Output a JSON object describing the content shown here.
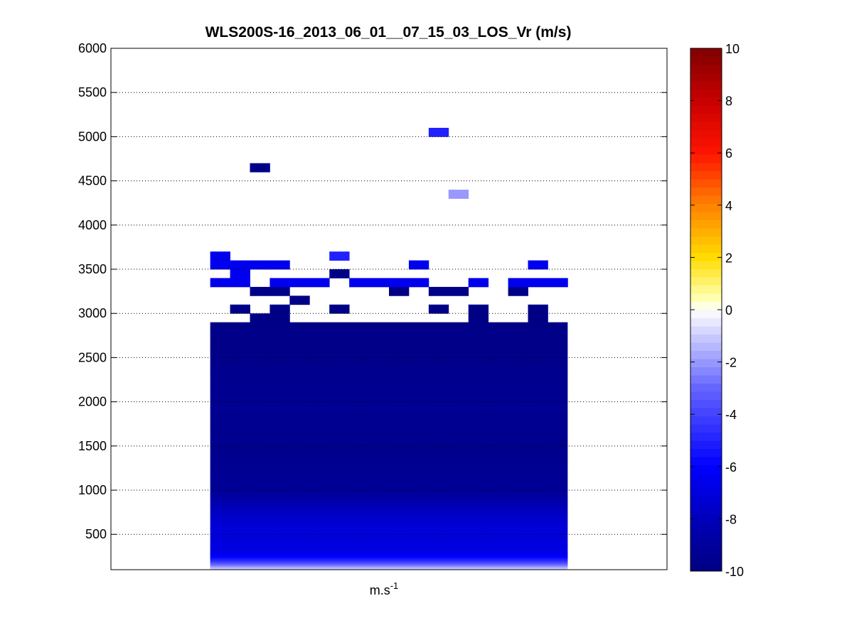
{
  "chart_data": {
    "type": "heatmap",
    "title": "WLS200S-16_2013_06_01__07_15_03_LOS_Vr (m/s)",
    "xlabel": "m.s",
    "xlabel_superscript": "-1",
    "ylabel": "",
    "ylim": [
      100,
      6000
    ],
    "yticks": [
      500,
      1000,
      1500,
      2000,
      2500,
      3000,
      3500,
      4000,
      4500,
      5000,
      5500,
      6000
    ],
    "grid": "y-dotted",
    "xlim": [
      0,
      28
    ],
    "colorbar": {
      "clim": [
        -10,
        10
      ],
      "ticks": [
        -10,
        -8,
        -6,
        -4,
        -2,
        0,
        2,
        4,
        6,
        8,
        10
      ],
      "colormap": "blue-white-red"
    },
    "columns": {
      "start": 5,
      "end": 23,
      "count": 18
    },
    "bulk_profile": [
      {
        "altitude": 100,
        "value": -0.5
      },
      {
        "altitude": 150,
        "value": -2.5
      },
      {
        "altitude": 200,
        "value": -4.5
      },
      {
        "altitude": 250,
        "value": -6.0
      },
      {
        "altitude": 300,
        "value": -6.8
      },
      {
        "altitude": 400,
        "value": -7.0
      },
      {
        "altitude": 600,
        "value": -7.2
      },
      {
        "altitude": 800,
        "value": -8.0
      },
      {
        "altitude": 1000,
        "value": -9.2
      },
      {
        "altitude": 1500,
        "value": -9.6
      },
      {
        "altitude": 2000,
        "value": -9.4
      },
      {
        "altitude": 2500,
        "value": -9.7
      },
      {
        "altitude": 2900,
        "value": -9.8
      }
    ],
    "cells": [
      {
        "col": 7,
        "alt_low": 2900,
        "alt_high": 3000,
        "value": -9.8
      },
      {
        "col": 8,
        "alt_low": 2900,
        "alt_high": 3100,
        "value": -9.8
      },
      {
        "col": 18,
        "alt_low": 2900,
        "alt_high": 3100,
        "value": -9.8
      },
      {
        "col": 21,
        "alt_low": 2900,
        "alt_high": 3100,
        "value": -9.8
      },
      {
        "col": 6,
        "alt_low": 3000,
        "alt_high": 3100,
        "value": -9.8
      },
      {
        "col": 11,
        "alt_low": 3000,
        "alt_high": 3100,
        "value": -9.8
      },
      {
        "col": 16,
        "alt_low": 3000,
        "alt_high": 3100,
        "value": -9.8
      },
      {
        "col": 9,
        "alt_low": 3100,
        "alt_high": 3200,
        "value": -9.8
      },
      {
        "col": 7,
        "alt_low": 3200,
        "alt_high": 3300,
        "value": -9.8
      },
      {
        "col": 8,
        "alt_low": 3200,
        "alt_high": 3300,
        "value": -9.8
      },
      {
        "col": 14,
        "alt_low": 3200,
        "alt_high": 3300,
        "value": -9.8
      },
      {
        "col": 16,
        "alt_low": 3200,
        "alt_high": 3300,
        "value": -9.8
      },
      {
        "col": 17,
        "alt_low": 3200,
        "alt_high": 3300,
        "value": -9.8
      },
      {
        "col": 20,
        "alt_low": 3200,
        "alt_high": 3300,
        "value": -9.8
      },
      {
        "col": 5,
        "alt_low": 3300,
        "alt_high": 3400,
        "value": -6.5
      },
      {
        "col": 6,
        "alt_low": 3300,
        "alt_high": 3400,
        "value": -6.5
      },
      {
        "col": 8,
        "alt_low": 3300,
        "alt_high": 3400,
        "value": -6.5
      },
      {
        "col": 9,
        "alt_low": 3300,
        "alt_high": 3400,
        "value": -6.5
      },
      {
        "col": 10,
        "alt_low": 3300,
        "alt_high": 3400,
        "value": -6.5
      },
      {
        "col": 12,
        "alt_low": 3300,
        "alt_high": 3400,
        "value": -6.5
      },
      {
        "col": 13,
        "alt_low": 3300,
        "alt_high": 3400,
        "value": -6.5
      },
      {
        "col": 14,
        "alt_low": 3300,
        "alt_high": 3400,
        "value": -6.5
      },
      {
        "col": 15,
        "alt_low": 3300,
        "alt_high": 3400,
        "value": -6.5
      },
      {
        "col": 18,
        "alt_low": 3300,
        "alt_high": 3400,
        "value": -6.5
      },
      {
        "col": 20,
        "alt_low": 3300,
        "alt_high": 3400,
        "value": -6.5
      },
      {
        "col": 21,
        "alt_low": 3300,
        "alt_high": 3400,
        "value": -6.5
      },
      {
        "col": 22,
        "alt_low": 3300,
        "alt_high": 3400,
        "value": -6.5
      },
      {
        "col": 6,
        "alt_low": 3400,
        "alt_high": 3500,
        "value": -6.5
      },
      {
        "col": 11,
        "alt_low": 3400,
        "alt_high": 3500,
        "value": -9.8
      },
      {
        "col": 5,
        "alt_low": 3500,
        "alt_high": 3600,
        "value": -6.5
      },
      {
        "col": 6,
        "alt_low": 3500,
        "alt_high": 3600,
        "value": -6.5
      },
      {
        "col": 7,
        "alt_low": 3500,
        "alt_high": 3600,
        "value": -6.5
      },
      {
        "col": 8,
        "alt_low": 3500,
        "alt_high": 3600,
        "value": -6.5
      },
      {
        "col": 15,
        "alt_low": 3500,
        "alt_high": 3600,
        "value": -6.5
      },
      {
        "col": 21,
        "alt_low": 3500,
        "alt_high": 3600,
        "value": -6.5
      },
      {
        "col": 5,
        "alt_low": 3600,
        "alt_high": 3700,
        "value": -6.5
      },
      {
        "col": 11,
        "alt_low": 3600,
        "alt_high": 3700,
        "value": -5.0
      },
      {
        "col": 17,
        "alt_low": 4300,
        "alt_high": 4400,
        "value": -2.0
      },
      {
        "col": 7,
        "alt_low": 4600,
        "alt_high": 4700,
        "value": -9.8
      },
      {
        "col": 16,
        "alt_low": 5000,
        "alt_high": 5100,
        "value": -5.0
      }
    ]
  }
}
